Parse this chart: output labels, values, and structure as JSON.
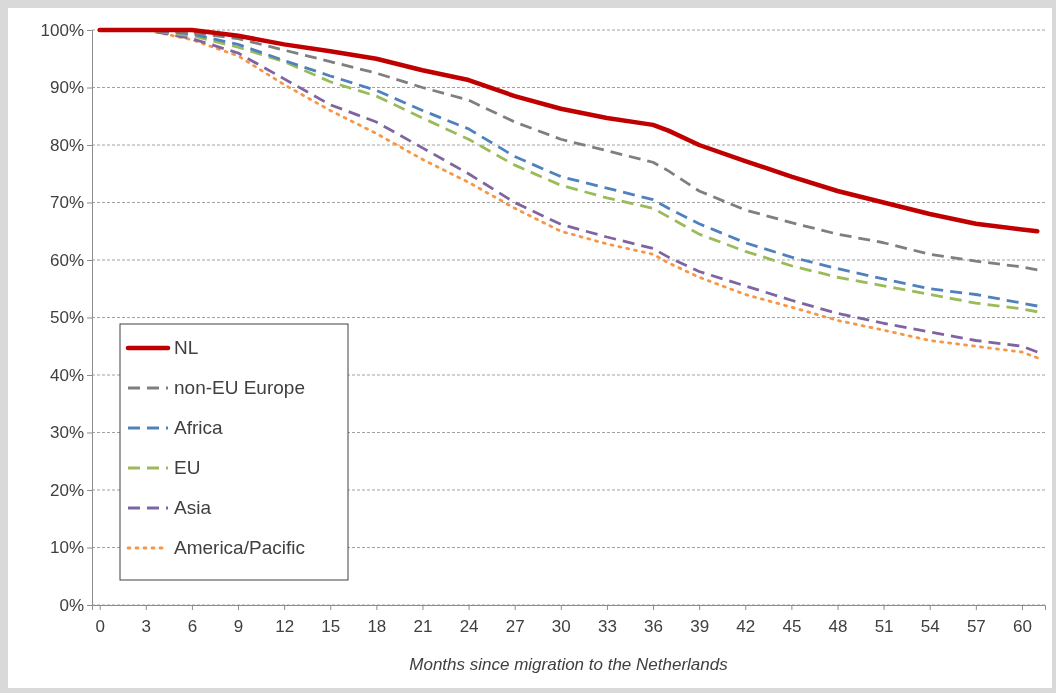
{
  "chart_data": {
    "type": "line",
    "xlabel": "Months since migration to the Netherlands",
    "x": [
      0,
      3,
      6,
      9,
      12,
      15,
      18,
      21,
      24,
      27,
      30,
      33,
      36,
      37,
      39,
      42,
      45,
      48,
      51,
      54,
      57,
      60,
      61
    ],
    "xlim": [
      -0.5,
      61.5
    ],
    "xticks": [
      0,
      3,
      6,
      9,
      12,
      15,
      18,
      21,
      24,
      27,
      30,
      33,
      36,
      39,
      42,
      45,
      48,
      51,
      54,
      57,
      60
    ],
    "ylim": [
      0,
      100
    ],
    "yticks": [
      {
        "value": 0,
        "label": "0%"
      },
      {
        "value": 10,
        "label": "10%"
      },
      {
        "value": 20,
        "label": "20%"
      },
      {
        "value": 30,
        "label": "30%"
      },
      {
        "value": 40,
        "label": "40%"
      },
      {
        "value": 50,
        "label": "50%"
      },
      {
        "value": 60,
        "label": "60%"
      },
      {
        "value": 70,
        "label": "70%"
      },
      {
        "value": 80,
        "label": "80%"
      },
      {
        "value": 90,
        "label": "90%"
      },
      {
        "value": 100,
        "label": "100%"
      }
    ],
    "grid": "y",
    "legend": "bottom left",
    "marker": "none",
    "series": [
      {
        "name": "NL",
        "color": "#c00000",
        "line_style": "solid",
        "values": [
          100,
          100,
          100,
          99,
          97.5,
          96.3,
          95,
          93,
          91.3,
          88.5,
          86.3,
          84.7,
          83.5,
          82.5,
          80,
          77.2,
          74.5,
          72,
          70,
          68,
          66.3,
          65.3,
          65
        ]
      },
      {
        "name": "non-EU Europe",
        "color": "#7f7f7f",
        "line_style": "dashed",
        "values": [
          100,
          100,
          99.5,
          98.5,
          96.5,
          94.5,
          92.5,
          90,
          87.8,
          84,
          81,
          79,
          77,
          75.5,
          72,
          68.7,
          66.5,
          64.5,
          63,
          61,
          59.8,
          58.8,
          58.3
        ]
      },
      {
        "name": "Africa",
        "color": "#4f81bd",
        "line_style": "dashed",
        "values": [
          100,
          100,
          99.3,
          97.5,
          94.7,
          92,
          89.5,
          86,
          82.8,
          78,
          74.5,
          72.5,
          70.5,
          69,
          66.3,
          63,
          60.5,
          58.5,
          56.7,
          55,
          54,
          52.5,
          52
        ]
      },
      {
        "name": "EU",
        "color": "#9bbb59",
        "line_style": "dashed",
        "values": [
          100,
          100,
          99,
          97,
          94.5,
          91,
          88.5,
          84.7,
          81,
          76.5,
          73,
          70.8,
          69,
          67.5,
          64.5,
          61.5,
          59,
          57,
          55.5,
          54,
          52.5,
          51.5,
          51
        ]
      },
      {
        "name": "Asia",
        "color": "#8064a2",
        "line_style": "dashed",
        "values": [
          100,
          100,
          98.5,
          96,
          91.5,
          87,
          84,
          79.5,
          75,
          70,
          66.2,
          64,
          62,
          60.5,
          58,
          55.5,
          53,
          50.7,
          49,
          47.5,
          46,
          45,
          44
        ]
      },
      {
        "name": "America/Pacific",
        "color": "#f79646",
        "line_style": "dotted",
        "values": [
          100,
          100,
          98.3,
          95.5,
          90.5,
          86,
          82,
          77.5,
          73.5,
          69,
          65,
          62.8,
          61,
          59.5,
          57,
          54,
          51.8,
          49.5,
          47.8,
          46,
          45,
          44,
          43
        ]
      }
    ]
  }
}
